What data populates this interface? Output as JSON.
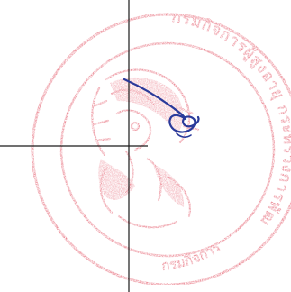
{
  "stamp": {
    "color": "#e0485a",
    "arc_text_right": "กรมกิจการผู้สูงอายุ กระทรวงการพัฒนาสังคมและความมั่นคงของมนุษย์",
    "arc_text_bottom": "กรมกิจการ"
  },
  "signature": {
    "color": "#2a3a9a"
  },
  "crosshair": {
    "color": "#1a1a1a"
  }
}
